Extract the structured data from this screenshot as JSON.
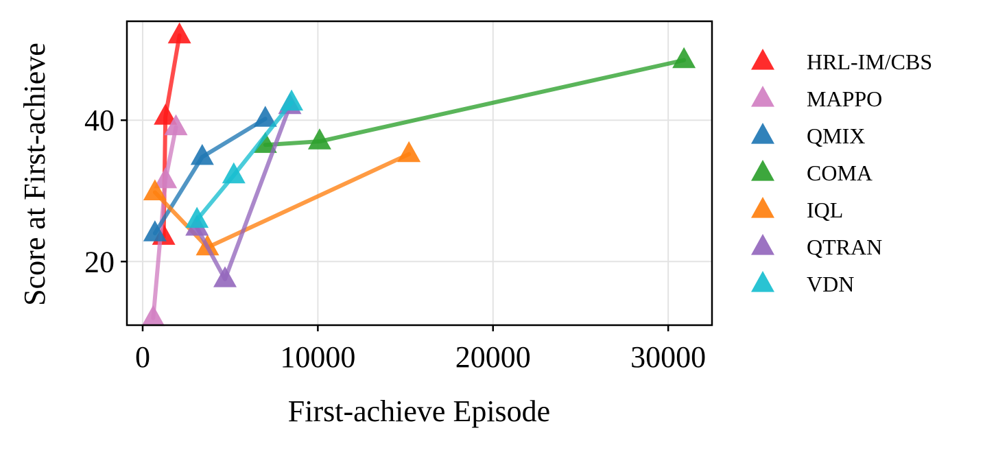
{
  "chart_data": {
    "type": "line",
    "title": "",
    "xlabel": "First-achieve Episode",
    "ylabel": "Score at First-achieve",
    "xlim": [
      -900,
      32500
    ],
    "ylim": [
      11,
      54
    ],
    "xticks": [
      0,
      10000,
      20000,
      30000
    ],
    "xtick_labels": [
      "0",
      "10000",
      "20000",
      "30000"
    ],
    "yticks": [
      20,
      40
    ],
    "ytick_labels": [
      "20",
      "40"
    ],
    "grid": true,
    "legend_position": "outside-right",
    "marker": "triangle",
    "series": [
      {
        "name": "HRL-IM/CBS",
        "color": "#ff1a1a",
        "x": [
          1200,
          1300,
          2100
        ],
        "y": [
          23.5,
          40.5,
          52.0
        ]
      },
      {
        "name": "MAPPO",
        "color": "#d17fc2",
        "x": [
          600,
          1300,
          1900
        ],
        "y": [
          12.0,
          31.5,
          39.0
        ]
      },
      {
        "name": "QMIX",
        "color": "#1f77b4",
        "x": [
          700,
          3400,
          7000
        ],
        "y": [
          24.0,
          34.8,
          40.2
        ]
      },
      {
        "name": "COMA",
        "color": "#2ca02c",
        "x": [
          7000,
          10100,
          30900
        ],
        "y": [
          36.5,
          37.0,
          48.5
        ]
      },
      {
        "name": "IQL",
        "color": "#ff7f0e",
        "x": [
          700,
          3700,
          15200
        ],
        "y": [
          29.8,
          22.0,
          35.2
        ]
      },
      {
        "name": "QTRAN",
        "color": "#9467bd",
        "x": [
          3100,
          4700,
          8400
        ],
        "y": [
          24.8,
          17.5,
          42.0
        ]
      },
      {
        "name": "VDN",
        "color": "#17becf",
        "x": [
          3100,
          5200,
          8500
        ],
        "y": [
          25.9,
          32.2,
          42.5
        ]
      }
    ]
  }
}
